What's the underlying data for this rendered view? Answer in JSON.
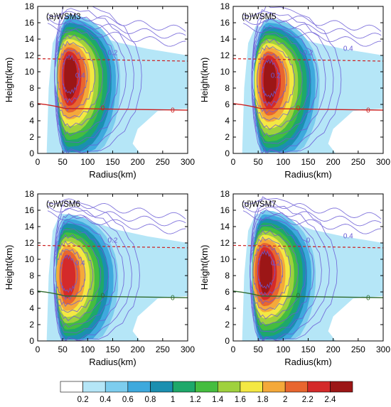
{
  "chart_data": [
    {
      "type": "contour",
      "panel_label": "(a)WSM3",
      "xlabel": "Radius(km)",
      "ylabel": "Height(km)",
      "xlim": [
        0,
        300
      ],
      "ylim": [
        0,
        18
      ],
      "xticks": [
        0,
        50,
        100,
        150,
        200,
        250,
        300
      ],
      "yticks": [
        0,
        2,
        4,
        6,
        8,
        10,
        12,
        14,
        16,
        18
      ],
      "core": {
        "radius": 62,
        "height": 9.5,
        "max_value": 2.4
      },
      "contour_labels": [
        "0",
        "0",
        "0.2",
        "0.4"
      ],
      "freezing_level_km": 5.4,
      "dashed_level_km": 11.6
    },
    {
      "type": "contour",
      "panel_label": "(b)WSM5",
      "xlabel": "Radius(km)",
      "ylabel": "Height(km)",
      "xlim": [
        0,
        300
      ],
      "ylim": [
        0,
        18
      ],
      "xticks": [
        0,
        50,
        100,
        150,
        200,
        250,
        300
      ],
      "yticks": [
        0,
        2,
        4,
        6,
        8,
        10,
        12,
        14,
        16,
        18
      ],
      "core": {
        "radius": 70,
        "height": 9.0,
        "max_value": 2.4
      },
      "contour_labels": [
        "0",
        "0",
        "0.2",
        "0.2",
        "0.4"
      ],
      "freezing_level_km": 5.4,
      "dashed_level_km": 11.6
    },
    {
      "type": "contour",
      "panel_label": "(c)WSM6",
      "xlabel": "Radius(km)",
      "ylabel": "Height(km)",
      "xlim": [
        0,
        300
      ],
      "ylim": [
        0,
        18
      ],
      "xticks": [
        0,
        50,
        100,
        150,
        200,
        250,
        300
      ],
      "yticks": [
        0,
        2,
        4,
        6,
        8,
        10,
        12,
        14,
        16,
        18
      ],
      "core": {
        "radius": 58,
        "height": 8.0,
        "max_value": 2.2
      },
      "contour_labels": [
        "0",
        "0",
        "0.2",
        "0.4"
      ],
      "freezing_level_km": 5.4,
      "dashed_level_km": 11.7
    },
    {
      "type": "contour",
      "panel_label": "(d)WSM7",
      "xlabel": "Radius(km)",
      "ylabel": "Height(km)",
      "xlim": [
        0,
        300
      ],
      "ylim": [
        0,
        18
      ],
      "xticks": [
        0,
        50,
        100,
        150,
        200,
        250,
        300
      ],
      "yticks": [
        0,
        2,
        4,
        6,
        8,
        10,
        12,
        14,
        16,
        18
      ],
      "core": {
        "radius": 62,
        "height": 8.5,
        "max_value": 2.4
      },
      "contour_labels": [
        "0",
        "0",
        "0",
        "0.2",
        "0.4"
      ],
      "freezing_level_km": 5.4,
      "dashed_level_km": 11.7
    }
  ],
  "colorbar": {
    "ticks": [
      "0.2",
      "0.4",
      "0.6",
      "0.8",
      "1",
      "1.2",
      "1.4",
      "1.6",
      "1.8",
      "2",
      "2.2",
      "2.4"
    ],
    "colors": [
      "#ffffff",
      "#b5e6f7",
      "#7dcdee",
      "#3ea9dd",
      "#1b8fb0",
      "#1ea86a",
      "#45bd3f",
      "#9fd13d",
      "#f4e843",
      "#f4a93a",
      "#e8662f",
      "#d42a2a",
      "#9c1616"
    ]
  },
  "style": {
    "contour_color": "#6a5bd6",
    "freezing_line_color_top": "#cc1f1f",
    "freezing_line_color_bottom": "#2f6b2f"
  }
}
